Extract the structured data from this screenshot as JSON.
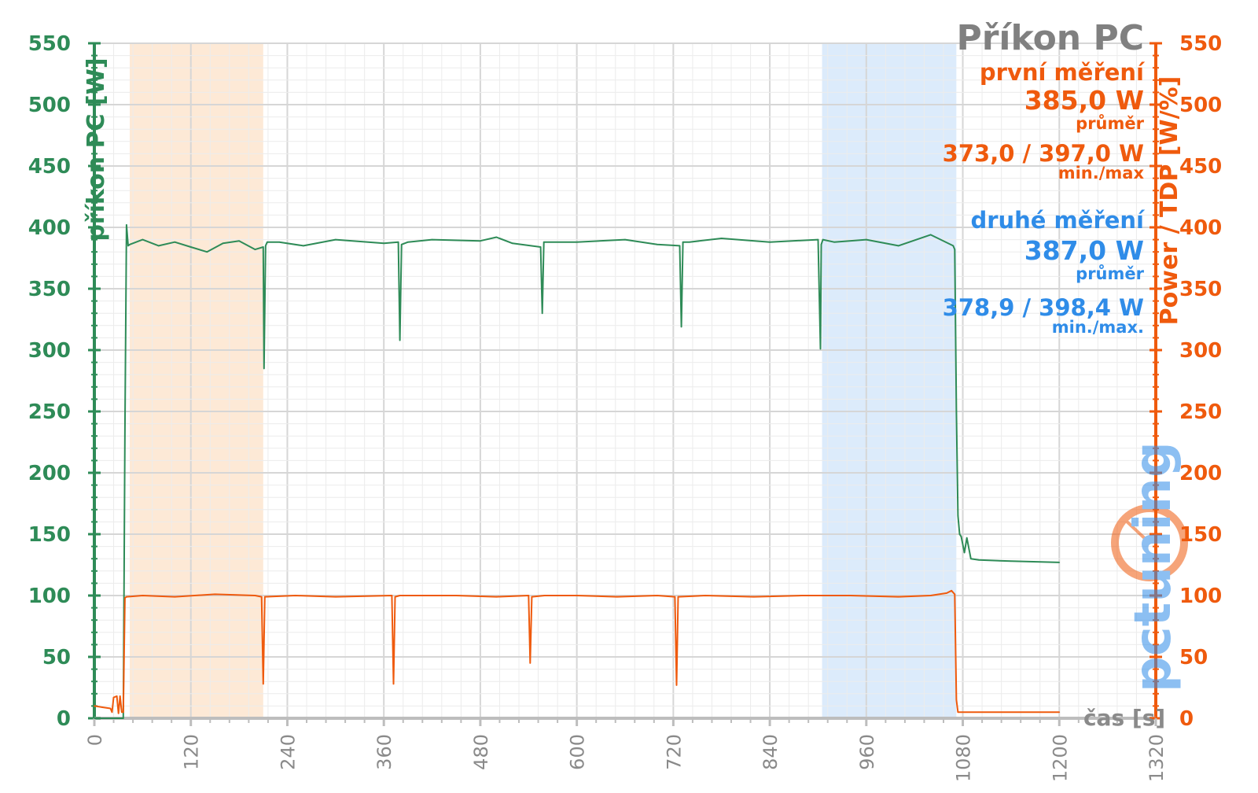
{
  "chart_data": {
    "type": "line",
    "title": "Příkon PC",
    "ylabel_left": "příkon PC [W]",
    "ylabel_right": "Power / TDP [W/%]",
    "xlabel": "čas [s]",
    "xlim": [
      0,
      1320
    ],
    "ylim": [
      0,
      550
    ],
    "x_ticks": [
      0,
      120,
      240,
      360,
      480,
      600,
      720,
      840,
      960,
      1080,
      1200,
      1320
    ],
    "y_ticks": [
      0,
      50,
      100,
      150,
      200,
      250,
      300,
      350,
      400,
      450,
      500,
      550
    ],
    "grid": true,
    "highlight_regions": [
      {
        "from": 44,
        "to": 210,
        "color": "#fde9d6"
      },
      {
        "from": 905,
        "to": 1072,
        "color": "#dcebfb"
      }
    ],
    "series": [
      {
        "color": "#2e8b57",
        "x": [
          0,
          36,
          38,
          40,
          42,
          44,
          60,
          80,
          100,
          120,
          140,
          160,
          180,
          200,
          210,
          211,
          213,
          215,
          230,
          260,
          300,
          360,
          378,
          380,
          382,
          390,
          420,
          480,
          500,
          520,
          555,
          557,
          559,
          565,
          600,
          660,
          700,
          728,
          730,
          732,
          740,
          780,
          840,
          900,
          903,
          904,
          906,
          920,
          960,
          1000,
          1040,
          1068,
          1070,
          1072,
          1074,
          1076,
          1078,
          1082,
          1085,
          1090,
          1100,
          1140,
          1200
        ],
        "y": [
          0,
          0,
          235,
          402,
          385,
          386,
          390,
          385,
          388,
          384,
          380,
          387,
          389,
          382,
          384,
          285,
          385,
          388,
          388,
          385,
          390,
          387,
          388,
          308,
          386,
          388,
          390,
          389,
          392,
          387,
          384,
          330,
          388,
          388,
          388,
          390,
          386,
          385,
          319,
          388,
          388,
          391,
          388,
          390,
          301,
          386,
          390,
          388,
          390,
          385,
          394,
          385,
          382,
          250,
          165,
          150,
          148,
          135,
          147,
          130,
          129,
          128,
          127
        ]
      },
      {
        "color": "#ef5a0d",
        "x": [
          0,
          10,
          20,
          22,
          24,
          28,
          30,
          32,
          34,
          36,
          38,
          40,
          60,
          100,
          150,
          200,
          208,
          210,
          212,
          250,
          300,
          370,
          372,
          374,
          380,
          450,
          500,
          540,
          542,
          544,
          560,
          600,
          650,
          700,
          722,
          724,
          726,
          760,
          820,
          880,
          940,
          1000,
          1040,
          1060,
          1066,
          1070,
          1072,
          1074,
          1080,
          1100,
          1150,
          1200
        ],
        "y": [
          10,
          9,
          8,
          5,
          17,
          18,
          4,
          18,
          5,
          5,
          98,
          99,
          100,
          99,
          101,
          100,
          99,
          28,
          99,
          100,
          99,
          100,
          28,
          99,
          100,
          100,
          99,
          100,
          45,
          99,
          100,
          100,
          99,
          100,
          99,
          27,
          99,
          100,
          99,
          100,
          100,
          99,
          100,
          102,
          104,
          101,
          15,
          5,
          5,
          5,
          5,
          5
        ]
      }
    ],
    "annotations": {
      "first": {
        "label": "první měření",
        "avg_value": "385,0 W",
        "avg_caption": "průměr",
        "minmax_value": "373,0 / 397,0 W",
        "minmax_caption": "min./max"
      },
      "second": {
        "label": "druhé měření",
        "avg_value": "387,0 W",
        "avg_caption": "průměr",
        "minmax_value": "378,9 / 398,4 W",
        "minmax_caption": "min./max."
      }
    },
    "watermark": "pctuning"
  }
}
